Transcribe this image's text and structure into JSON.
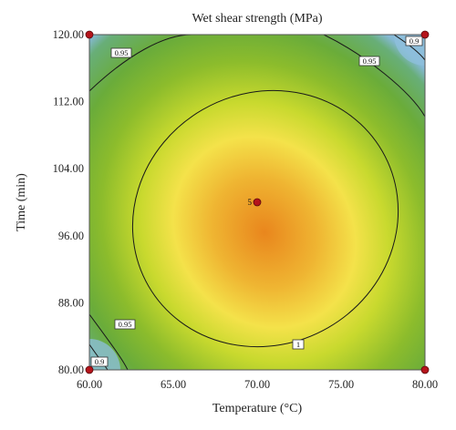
{
  "chart_data": {
    "type": "contour",
    "title": "Wet shear strength (MPa)",
    "xlabel": "Temperature (°C)",
    "ylabel": "Time (min)",
    "xlim": [
      60,
      80
    ],
    "ylim": [
      80,
      120
    ],
    "x_ticks": [
      "60.00",
      "65.00",
      "70.00",
      "75.00",
      "80.00"
    ],
    "y_ticks": [
      "80.00",
      "88.00",
      "96.00",
      "104.00",
      "112.00",
      "120.00"
    ],
    "center": {
      "x": 71,
      "y": 98
    },
    "contours": [
      {
        "level_label": "1",
        "level": 1.0
      },
      {
        "level_label": "0.95",
        "level": 0.95
      },
      {
        "level_label": "0.9",
        "level": 0.9
      }
    ],
    "design_points": [
      {
        "x": 60,
        "y": 120,
        "label": ""
      },
      {
        "x": 80,
        "y": 120,
        "label": ""
      },
      {
        "x": 60,
        "y": 80,
        "label": ""
      },
      {
        "x": 80,
        "y": 80,
        "label": ""
      },
      {
        "x": 70,
        "y": 100,
        "label": "5"
      }
    ],
    "colors": {
      "low": "#7fb2d0",
      "mid_low": "#6fae36",
      "mid": "#c9d92e",
      "high_mid": "#f3e14a",
      "high": "#e88a1e",
      "point": "#b5141b"
    }
  }
}
